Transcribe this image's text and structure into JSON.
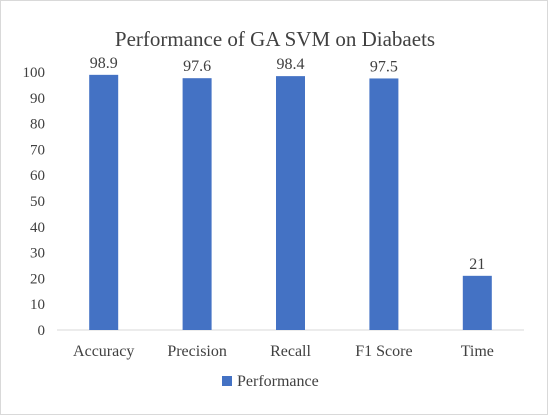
{
  "chart_data": {
    "type": "bar",
    "title": "Performance of GA SVM on Diabaets",
    "categories": [
      "Accuracy",
      "Precision",
      "Recall",
      "F1 Score",
      "Time"
    ],
    "series": [
      {
        "name": "Performance",
        "values": [
          98.9,
          97.6,
          98.4,
          97.5,
          21
        ],
        "color": "#4472C4"
      }
    ],
    "data_labels": [
      "98.9",
      "97.6",
      "98.4",
      "97.5",
      "21"
    ],
    "ylim": [
      0,
      100
    ],
    "yticks": [
      0,
      10,
      20,
      30,
      40,
      50,
      60,
      70,
      80,
      90,
      100
    ],
    "xlabel": "",
    "ylabel": "",
    "grid": false,
    "legend_position": "bottom"
  }
}
